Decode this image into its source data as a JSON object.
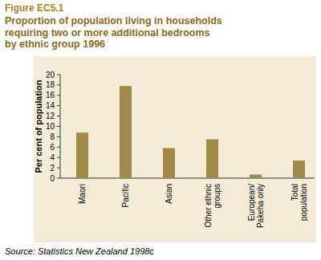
{
  "chart_data": {
    "type": "bar",
    "title": "Figure EC5.1",
    "subtitle": "Proportion of population living in households\nrequiring two or more additional bedrooms\nby ethnic group 1996",
    "y_label": "Per cent of population",
    "categories": [
      "Maori",
      "Pacific",
      "Asian",
      "Other ethnic\ngroups",
      "European/\nPakeha only",
      "Total\npopulation"
    ],
    "values": [
      8.8,
      17.8,
      5.8,
      7.5,
      0.7,
      3.4
    ],
    "color": "#a08a48",
    "ylim": [
      0,
      20
    ],
    "yticks": [
      0,
      2,
      4,
      6,
      8,
      10,
      12,
      14,
      16,
      18,
      20
    ],
    "grid": false,
    "annotations": [
      "Source: Statistics New Zealand 1998c"
    ]
  }
}
